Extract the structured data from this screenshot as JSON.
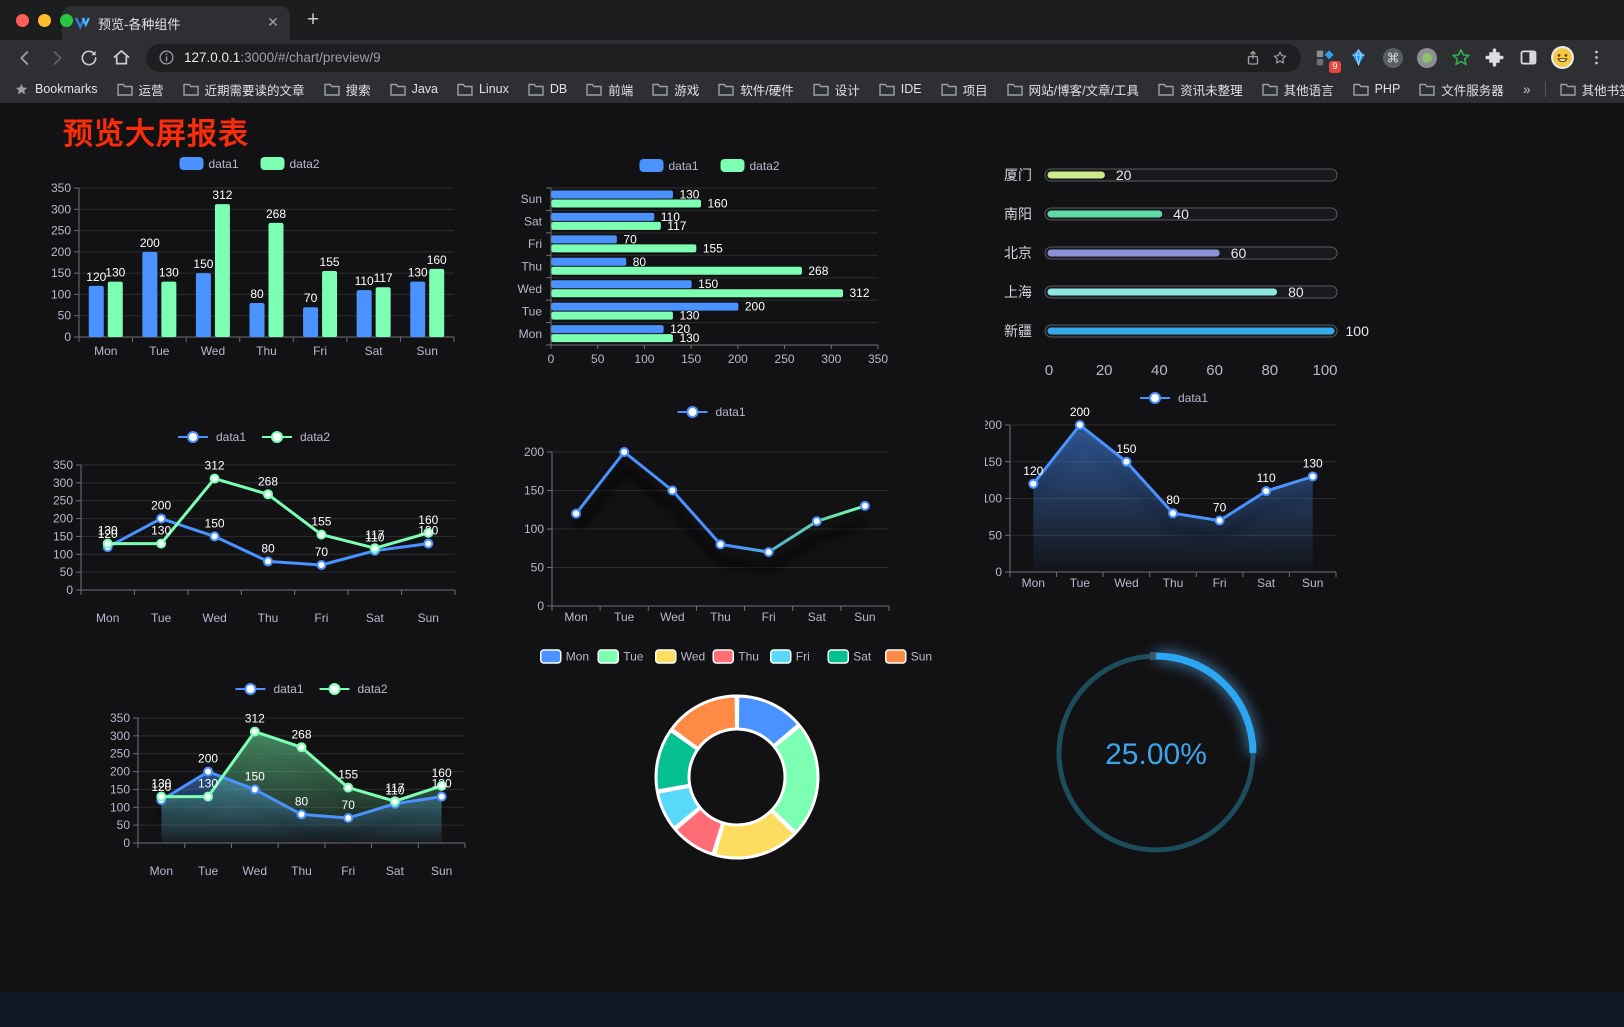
{
  "browser": {
    "tab_title": "预览-各种组件",
    "url_host": "127.0.0.1",
    "url_rest": ":3000/#/chart/preview/9",
    "bookmarks_label": "Bookmarks",
    "bookmarks": [
      "运营",
      "近期需要读的文章",
      "搜索",
      "Java",
      "Linux",
      "DB",
      "前端",
      "游戏",
      "软件/硬件",
      "设计",
      "IDE",
      "项目",
      "网站/博客/文章/工具",
      "资讯未整理",
      "其他语言",
      "PHP",
      "文件服务器"
    ],
    "overflow_chevron": "»",
    "other_bookmarks": "其他书签",
    "extension_badge": "9"
  },
  "page": {
    "title": "预览大屏报表",
    "title_color": "#fa2c0a"
  },
  "chart_data": [
    {
      "id": "bar-vertical-grouped",
      "type": "bar",
      "orientation": "vertical",
      "categories": [
        "Mon",
        "Tue",
        "Wed",
        "Thu",
        "Fri",
        "Sat",
        "Sun"
      ],
      "series": [
        {
          "name": "data1",
          "color": "#4992ff",
          "values": [
            120,
            200,
            150,
            80,
            70,
            110,
            130
          ]
        },
        {
          "name": "data2",
          "color": "#7cffb2",
          "values": [
            130,
            130,
            312,
            268,
            155,
            117,
            160
          ]
        }
      ],
      "ylim": [
        0,
        350
      ],
      "ytick_step": 50,
      "legend_position": "top",
      "grid": true,
      "value_labels": true
    },
    {
      "id": "bar-horizontal-grouped",
      "type": "bar",
      "orientation": "horizontal",
      "categories_top_to_bottom": [
        "Sun",
        "Sat",
        "Fri",
        "Thu",
        "Wed",
        "Tue",
        "Mon"
      ],
      "series": [
        {
          "name": "data1",
          "color": "#4992ff",
          "values": [
            130,
            110,
            70,
            80,
            150,
            200,
            120
          ]
        },
        {
          "name": "data2",
          "color": "#7cffb2",
          "values": [
            160,
            117,
            155,
            268,
            312,
            130,
            130
          ]
        }
      ],
      "xlim": [
        0,
        350
      ],
      "xtick_step": 50,
      "legend_position": "top",
      "grid": true,
      "value_labels": true
    },
    {
      "id": "progress-bars",
      "type": "bar",
      "subtype": "progress",
      "categories": [
        "厦门",
        "南阳",
        "北京",
        "上海",
        "新疆"
      ],
      "values": [
        20,
        40,
        60,
        80,
        100
      ],
      "colors": [
        "#cdeb8b",
        "#5fd9a6",
        "#8a92d8",
        "#8ee6e2",
        "#38a9e8"
      ],
      "xlim": [
        0,
        100
      ],
      "xticks": [
        0,
        20,
        40,
        60,
        80,
        100
      ]
    },
    {
      "id": "line-two-series",
      "type": "line",
      "categories": [
        "Mon",
        "Tue",
        "Wed",
        "Thu",
        "Fri",
        "Sat",
        "Sun"
      ],
      "series": [
        {
          "name": "data1",
          "color": "#4992ff",
          "values": [
            120,
            200,
            150,
            80,
            70,
            110,
            130
          ]
        },
        {
          "name": "data2",
          "color": "#7cffb2",
          "values": [
            130,
            130,
            312,
            268,
            155,
            117,
            160
          ]
        }
      ],
      "ylim": [
        0,
        350
      ],
      "ytick_step": 50,
      "legend_position": "top",
      "value_labels": true,
      "markers": true
    },
    {
      "id": "line-gradient-shadow",
      "type": "line",
      "subtype": "gradient",
      "categories": [
        "Mon",
        "Tue",
        "Wed",
        "Thu",
        "Fri",
        "Sat",
        "Sun"
      ],
      "series": [
        {
          "name": "data1",
          "color_start": "#4992ff",
          "color_end": "#7cffb2",
          "values": [
            120,
            200,
            150,
            80,
            70,
            110,
            130
          ]
        }
      ],
      "ylim": [
        0,
        200
      ],
      "ytick_step": 50,
      "legend_position": "top",
      "value_labels": false,
      "markers": true
    },
    {
      "id": "area-single",
      "type": "area",
      "categories": [
        "Mon",
        "Tue",
        "Wed",
        "Thu",
        "Fri",
        "Sat",
        "Sun"
      ],
      "series": [
        {
          "name": "data1",
          "color": "#4992ff",
          "values": [
            120,
            200,
            150,
            80,
            70,
            110,
            130
          ]
        }
      ],
      "ylim": [
        0,
        200
      ],
      "ytick_step": 50,
      "legend_position": "top",
      "value_labels": true,
      "markers": true
    },
    {
      "id": "area-two-series",
      "type": "area",
      "categories": [
        "Mon",
        "Tue",
        "Wed",
        "Thu",
        "Fri",
        "Sat",
        "Sun"
      ],
      "series": [
        {
          "name": "data1",
          "color": "#4992ff",
          "values": [
            120,
            200,
            150,
            80,
            70,
            110,
            130
          ]
        },
        {
          "name": "data2",
          "color": "#7cffb2",
          "values": [
            130,
            130,
            312,
            268,
            155,
            117,
            160
          ]
        }
      ],
      "ylim": [
        0,
        350
      ],
      "ytick_step": 50,
      "legend_position": "top",
      "value_labels": true,
      "markers": true
    },
    {
      "id": "donut",
      "type": "pie",
      "subtype": "donut",
      "labels": [
        "Mon",
        "Tue",
        "Wed",
        "Thu",
        "Fri",
        "Sat",
        "Sun"
      ],
      "values": [
        120,
        200,
        150,
        80,
        70,
        110,
        130
      ],
      "colors": [
        "#4992ff",
        "#7cffb2",
        "#fddd60",
        "#ff6e76",
        "#58d9f9",
        "#05c091",
        "#ff8a45"
      ],
      "legend_position": "top"
    },
    {
      "id": "gauge",
      "type": "gauge",
      "value": 25,
      "max": 100,
      "label": "25.00%",
      "progress_color": "#2ba7f2",
      "track_color": "#1d4d5c",
      "text_color": "#3da4ea"
    }
  ]
}
